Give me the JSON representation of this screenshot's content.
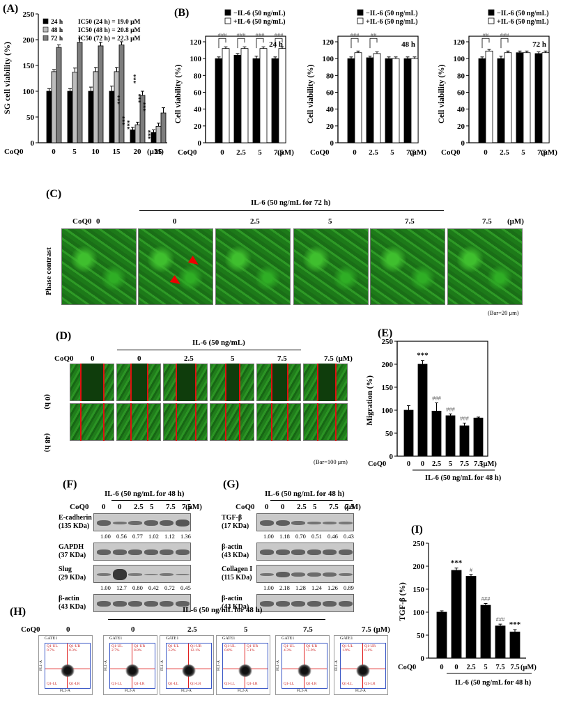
{
  "panelA": {
    "label": "(A)",
    "ylabel": "SG cell viability (%)",
    "legend": [
      "24 h",
      "48 h",
      "72 h"
    ],
    "ic50": [
      "IC50 (24 h) = 19.0 μM",
      "IC50 (48 h) = 20.8 μM",
      "IC50 (72 h) = 22.3 μM"
    ],
    "coq_label": "CoQ0",
    "unit": "(μM)",
    "yticks": [
      "0",
      "50",
      "100",
      "150",
      "200",
      "250"
    ],
    "stars": [
      "***",
      "***",
      "***",
      "***",
      "***",
      "***",
      "***"
    ]
  },
  "panelB": {
    "label": "(B)",
    "ylabel": "Cell viability (%)",
    "legend": [
      "−IL-6 (50 ng/mL)",
      "+IL-6 (50 ng/mL)"
    ],
    "times": [
      "24 h",
      "48 h",
      "72 h"
    ],
    "yticks": [
      "0",
      "20",
      "40",
      "60",
      "80",
      "100",
      "120"
    ],
    "coq_label": "CoQ0",
    "unit": "(μM)",
    "sig": [
      [
        "###",
        "###",
        "###",
        "###"
      ],
      [
        "###",
        "##"
      ],
      [
        "##",
        "###"
      ]
    ]
  },
  "panelC": {
    "label": "(C)",
    "treatment": "IL-6 (50 ng/mL for 72 h)",
    "coq_label": "CoQ0",
    "unit": "(μM)",
    "doses": [
      "0",
      "0",
      "2.5",
      "5",
      "7.5",
      "7.5"
    ],
    "row_label": "Phase contrast",
    "bar_note": "(Bar=20 μm)"
  },
  "panelD": {
    "label": "(D)",
    "treatment": "IL-6 (50 ng/mL)",
    "coq_label": "CoQ0",
    "unit": "(μM)",
    "doses": [
      "0",
      "0",
      "2.5",
      "5",
      "7.5",
      "7.5"
    ],
    "rows": [
      "(0 h)",
      "(48 h)"
    ],
    "bar_note": "(Bar=100 μm)"
  },
  "panelE": {
    "label": "(E)",
    "ylabel": "Migration (%)",
    "yticks": [
      "0",
      "50",
      "100",
      "150",
      "200",
      "250"
    ],
    "coq_label": "CoQ0",
    "unit": "(μM)",
    "doses": [
      "0",
      "0",
      "2.5",
      "5",
      "7.5",
      "7.5"
    ],
    "sig": [
      "",
      "***",
      "###",
      "###",
      "###",
      ""
    ],
    "treatment": "IL-6 (50 ng/mL for 48 h)"
  },
  "panelF": {
    "label": "(F)",
    "treatment": "IL-6 (50 ng/mL for 48 h)",
    "coq_label": "CoQ0",
    "unit": "(μM)",
    "doses": [
      "0",
      "0",
      "2.5",
      "5",
      "7.5",
      "7.5"
    ],
    "blots": [
      {
        "name": "E-cadherin",
        "kda": "(135 KDa)",
        "ratios": [
          "1.00",
          "0.56",
          "0.77",
          "1.02",
          "1.12",
          "1.36"
        ]
      },
      {
        "name": "GAPDH",
        "kda": "(37 KDa)",
        "ratios": []
      },
      {
        "name": "Slug",
        "kda": "(29 KDa)",
        "ratios": [
          "1.00",
          "12.7",
          "0.80",
          "0.42",
          "0.72",
          "0.45"
        ]
      },
      {
        "name": "β-actin",
        "kda": "(43 KDa)",
        "ratios": []
      }
    ]
  },
  "panelG": {
    "label": "(G)",
    "treatment": "IL-6 (50 ng/mL for 48 h)",
    "coq_label": "CoQ0",
    "unit": "(μM)",
    "doses": [
      "0",
      "0",
      "2.5",
      "5",
      "7.5",
      "7.5"
    ],
    "blots": [
      {
        "name": "TGF-β",
        "kda": "(17 KDa)",
        "ratios": [
          "1.00",
          "1.18",
          "0.70",
          "0.51",
          "0.46",
          "0.43"
        ]
      },
      {
        "name": "β-actin",
        "kda": "(43 KDa)",
        "ratios": []
      },
      {
        "name": "Collagen I",
        "kda": "(115 KDa)",
        "ratios": [
          "1.00",
          "2.18",
          "1.28",
          "1.24",
          "1.26",
          "0.89"
        ]
      },
      {
        "name": "β-actin",
        "kda": "(43 KDa)",
        "ratios": []
      }
    ]
  },
  "panelH": {
    "label": "(H)",
    "treatment": "IL-6 (50 ng/mL for 48 h)",
    "coq_label": "CoQ0",
    "unit": "(μM)",
    "doses": [
      "0",
      "0",
      "2.5",
      "5",
      "7.5",
      "7.5"
    ],
    "gate": "GATE1",
    "xaxis": "FL2-A",
    "yaxis": "FL1-A",
    "quad_labels": [
      "Q1-UL",
      "Q1-UR",
      "Q1-LL",
      "Q1-LR"
    ],
    "upper_percentages": [
      [
        "0.7%",
        "0.3%"
      ],
      [
        "2.7%",
        "8.8%"
      ],
      [
        "3.2%",
        "12.1%"
      ],
      [
        "0.8%",
        "5.1%"
      ],
      [
        "4.3%",
        "15.9%"
      ],
      [
        "1.9%",
        "6.1%"
      ]
    ]
  },
  "panelI": {
    "label": "(I)",
    "ylabel": "TGF-β (%)",
    "yticks": [
      "0",
      "50",
      "100",
      "150",
      "200",
      "250"
    ],
    "coq_label": "CoQ0",
    "unit": "(μM)",
    "doses": [
      "0",
      "0",
      "2.5",
      "5",
      "7.5",
      "7.5"
    ],
    "sig": [
      "",
      "***",
      "#",
      "###",
      "###",
      "***"
    ],
    "treatment": "IL-6 (50 ng/mL for 48 h)"
  },
  "chart_data": [
    {
      "id": "A",
      "type": "bar",
      "categories": [
        "0",
        "5",
        "10",
        "15",
        "20",
        "25"
      ],
      "series": [
        {
          "name": "24 h",
          "values": [
            100,
            100,
            100,
            100,
            25,
            20
          ],
          "errors": [
            5,
            5,
            8,
            10,
            5,
            5
          ],
          "color": "#000000"
        },
        {
          "name": "48 h",
          "values": [
            138,
            137,
            138,
            138,
            35,
            32
          ],
          "errors": [
            4,
            8,
            8,
            8,
            5,
            6
          ],
          "color": "#b8b8b8"
        },
        {
          "name": "72 h",
          "values": [
            185,
            195,
            188,
            190,
            92,
            58
          ],
          "errors": [
            5,
            8,
            7,
            6,
            8,
            10
          ],
          "color": "#7a7a7a"
        }
      ],
      "ylim": [
        0,
        250
      ],
      "xlabel": "CoQ0 (μM)",
      "ylabel": "SG cell viability (%)"
    },
    {
      "id": "B-24h",
      "type": "bar",
      "categories": [
        "0",
        "2.5",
        "5",
        "7.5"
      ],
      "series": [
        {
          "name": "−IL-6 (50 ng/mL)",
          "values": [
            100,
            104,
            100,
            100
          ],
          "errors": [
            2,
            2,
            3,
            2
          ]
        },
        {
          "name": "+IL-6 (50 ng/mL)",
          "values": [
            112,
            112,
            112,
            112
          ],
          "errors": [
            2,
            2,
            2,
            2
          ]
        }
      ],
      "ylim": [
        0,
        120
      ],
      "ylabel": "Cell viability (%)"
    },
    {
      "id": "B-48h",
      "type": "bar",
      "categories": [
        "0",
        "2.5",
        "5",
        "7.5"
      ],
      "series": [
        {
          "name": "−IL-6 (50 ng/mL)",
          "values": [
            100,
            101,
            100,
            100
          ],
          "errors": [
            2,
            2,
            2,
            2
          ]
        },
        {
          "name": "+IL-6 (50 ng/mL)",
          "values": [
            107,
            106,
            100,
            100
          ],
          "errors": [
            2,
            2,
            2,
            2
          ]
        }
      ],
      "ylim": [
        0,
        120
      ],
      "ylabel": "Cell viability (%)"
    },
    {
      "id": "B-72h",
      "type": "bar",
      "categories": [
        "0",
        "2.5",
        "5",
        "7.5"
      ],
      "series": [
        {
          "name": "−IL-6 (50 ng/mL)",
          "values": [
            100,
            100,
            107,
            106
          ],
          "errors": [
            2,
            3,
            2,
            2
          ]
        },
        {
          "name": "+IL-6 (50 ng/mL)",
          "values": [
            109,
            107,
            107,
            107
          ],
          "errors": [
            2,
            2,
            2,
            2
          ]
        }
      ],
      "ylim": [
        0,
        120
      ],
      "ylabel": "Cell viability (%)"
    },
    {
      "id": "E",
      "type": "bar",
      "categories": [
        "0",
        "0",
        "2.5",
        "5",
        "7.5",
        "7.5"
      ],
      "values": [
        100,
        200,
        98,
        88,
        66,
        83
      ],
      "errors": [
        10,
        8,
        18,
        4,
        6,
        2
      ],
      "ylim": [
        0,
        250
      ],
      "ylabel": "Migration (%)"
    },
    {
      "id": "I",
      "type": "bar",
      "categories": [
        "0",
        "0",
        "2.5",
        "5",
        "7.5",
        "7.5"
      ],
      "values": [
        100,
        191,
        178,
        115,
        70,
        57
      ],
      "errors": [
        3,
        5,
        4,
        4,
        4,
        5
      ],
      "ylim": [
        0,
        250
      ],
      "ylabel": "TGF-β (%)"
    }
  ]
}
